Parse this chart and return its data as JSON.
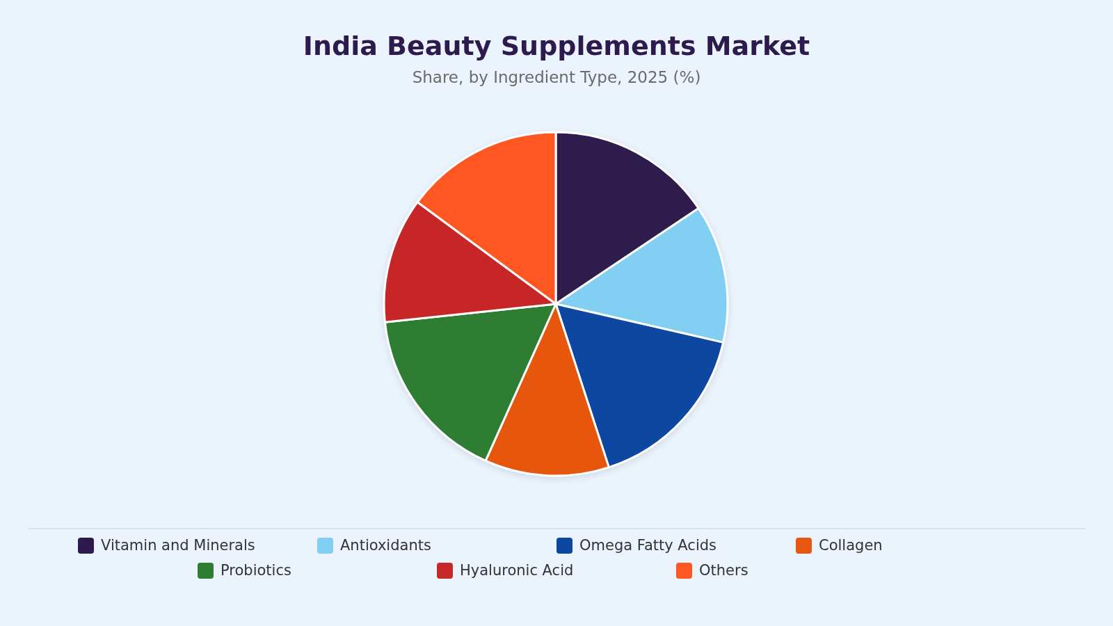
{
  "chart_data": {
    "type": "pie",
    "title": "India Beauty Supplements Market",
    "subtitle": "Share, by Ingredient Type, 2025 (%)",
    "categories": [
      "Vitamin and Minerals",
      "Antioxidants",
      "Omega Fatty Acids",
      "Collagen",
      "Probiotics",
      "Hyaluronic Acid",
      "Others"
    ],
    "values": [
      15.6,
      13.0,
      16.4,
      11.7,
      16.6,
      11.8,
      14.9
    ],
    "colors": [
      "#2d1b4e",
      "#81cff2",
      "#0d47a1",
      "#e65710",
      "#2e7d32",
      "#c62828",
      "#ff5722"
    ],
    "legend": "bottom"
  }
}
